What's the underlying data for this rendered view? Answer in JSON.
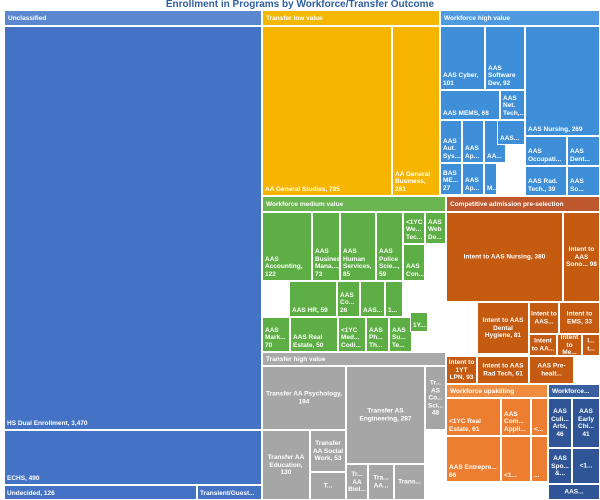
{
  "chart_data": {
    "type": "treemap",
    "title": "Enrollment in Programs by Workforce/Transfer Outcome",
    "groups": [
      {
        "name": "Unclassified",
        "color": "#4472c4",
        "header_color": "#5b87cf",
        "items": [
          {
            "label": "HS Dual Enrollment, 3,470",
            "value": 3470
          },
          {
            "label": "ECHS, 490",
            "value": 490
          },
          {
            "label": "Undecided, 126",
            "value": 126
          },
          {
            "label": "Transient/Guest...",
            "value": 60
          }
        ]
      },
      {
        "name": "Transfer low value",
        "color": "#f7b500",
        "header_color": "#f5b800",
        "items": [
          {
            "label": "AA General Studies, 785",
            "value": 785
          },
          {
            "label": "AA General Business, 281",
            "value": 281
          }
        ]
      },
      {
        "name": "Workforce high value",
        "color": "#3e8fd8",
        "header_color": "#4f9ae0",
        "items": [
          {
            "label": "AAS Cyber, 101",
            "value": 101
          },
          {
            "label": "AAS Software Dev, 92",
            "value": 92
          },
          {
            "label": "AAS Net. Tech,...",
            "value": 30
          },
          {
            "label": "AAS MEMS, 68",
            "value": 68
          },
          {
            "label": "AAS Nursing, 269",
            "value": 269
          },
          {
            "label": "AAS Aut. Sys....",
            "value": 40
          },
          {
            "label": "AAS Ap...",
            "value": 22
          },
          {
            "label": "AA...",
            "value": 12
          },
          {
            "label": "AAS...",
            "value": 30
          },
          {
            "label": "AAS Occupati...",
            "value": 45
          },
          {
            "label": "AAS Dent...",
            "value": 30
          },
          {
            "label": "BAS ME... 27",
            "value": 27
          },
          {
            "label": "AAS Ap...",
            "value": 18
          },
          {
            "label": "M...",
            "value": 10
          },
          {
            "label": "AAS Rad. Tech., 39",
            "value": 39
          },
          {
            "label": "AAS So...",
            "value": 20
          }
        ]
      },
      {
        "name": "Workforce medium value",
        "color": "#5dae44",
        "header_color": "#6ab54f",
        "items": [
          {
            "label": "AAS Accounting, 122",
            "value": 122
          },
          {
            "label": "AAS Business Mana..., 73",
            "value": 73
          },
          {
            "label": "AAS Human Services, 85",
            "value": 85
          },
          {
            "label": "AAS Police Scie..., 59",
            "value": 59
          },
          {
            "label": "<1YC We... Tec...",
            "value": 22
          },
          {
            "label": "AAS Web De...",
            "value": 22
          },
          {
            "label": "AAS Con...",
            "value": 20
          },
          {
            "label": "AAS HR, 59",
            "value": 59
          },
          {
            "label": "AAS Co... 26",
            "value": 26
          },
          {
            "label": "AAS...",
            "value": 18
          },
          {
            "label": "1...",
            "value": 8
          },
          {
            "label": "AAS Mark... 70",
            "value": 70
          },
          {
            "label": "AAS Real Estate, 50",
            "value": 50
          },
          {
            "label": "<1YC Med... Codi...",
            "value": 32
          },
          {
            "label": "AAS Ph... Th...",
            "value": 25
          },
          {
            "label": "AAS Su... Te...",
            "value": 22
          },
          {
            "label": "1Y...",
            "value": 15
          }
        ]
      },
      {
        "name": "Competitive admission pre-selection",
        "color": "#c55a11",
        "header_color": "#c0582e",
        "items": [
          {
            "label": "Intent to AAS Nursing, 380",
            "value": 380
          },
          {
            "label": "Intent to AAS Sono... 98",
            "value": 98
          },
          {
            "label": "Intent to AAS Dental Hygiene, 81",
            "value": 81
          },
          {
            "label": "Intent to AAS...",
            "value": 30
          },
          {
            "label": "Intent to EMS, 33",
            "value": 33
          },
          {
            "label": "Intent to AA...",
            "value": 24
          },
          {
            "label": "Intent to Me...",
            "value": 18
          },
          {
            "label": "I... t...",
            "value": 10
          },
          {
            "label": "Intent to 1YT LPN, 93",
            "value": 93
          },
          {
            "label": "Intent to AAS Rad Tech, 61",
            "value": 61
          },
          {
            "label": "AAS Pre-healt...",
            "value": 30
          }
        ]
      },
      {
        "name": "Transfer high value",
        "color": "#a6a6a6",
        "header_color": "#a9a9a9",
        "items": [
          {
            "label": "Transfer AA Psychology, 194",
            "value": 194
          },
          {
            "label": "Transfer AS Engineering, 287",
            "value": 287
          },
          {
            "label": "Tr... AS Co... Sci... 48",
            "value": 48
          },
          {
            "label": "Transfer AA Social Work, 53",
            "value": 53
          },
          {
            "label": "Transfer AA Education, 130",
            "value": 130
          },
          {
            "label": "Tr... AA Biol...",
            "value": 38
          },
          {
            "label": "Tra... AA...",
            "value": 25
          },
          {
            "label": "Trans...",
            "value": 22
          },
          {
            "label": "T...",
            "value": 18
          }
        ]
      },
      {
        "name": "Workforce upskilling",
        "color": "#ed7d31",
        "header_color": "#f08c3f",
        "items": [
          {
            "label": "<1YC Real Estate, 61",
            "value": 61
          },
          {
            "label": "AAS Com... Appli...",
            "value": 30
          },
          {
            "label": "<...",
            "value": 15
          },
          {
            "label": "AAS Entrepre... 66",
            "value": 66
          },
          {
            "label": "<1...",
            "value": 18
          },
          {
            "label": "...",
            "value": 12
          }
        ]
      },
      {
        "name": "Workforce...",
        "color": "#2f5597",
        "header_color": "#3a5f9e",
        "items": [
          {
            "label": "AAS Culi... Arts, 46",
            "value": 46
          },
          {
            "label": "AAS Early Chi... 41",
            "value": 41
          },
          {
            "label": "AAS Spo... &...",
            "value": 30
          },
          {
            "label": "<1...",
            "value": 20
          },
          {
            "label": "AAS...",
            "value": 15
          }
        ]
      }
    ]
  }
}
